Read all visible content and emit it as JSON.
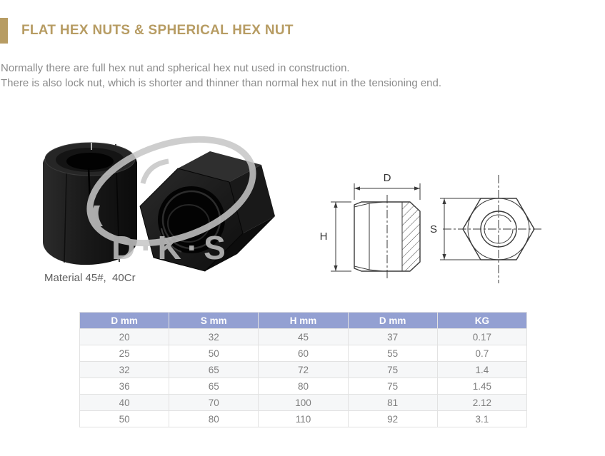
{
  "header": {
    "title": "FLAT HEX NUTS & SPHERICAL HEX NUT"
  },
  "description": {
    "line1": "Normally there are full hex nut and spherical hex nut used in construction.",
    "line2": "There is also lock nut, which is shorter and thinner than normal hex nut in the tensioning end."
  },
  "photo": {
    "watermark": "D·K·S",
    "caption": "Material 45#,  40Cr"
  },
  "drawing": {
    "diameter_label": "D",
    "height_label": "H",
    "width_across_flats_label": "S"
  },
  "table": {
    "headers": [
      "D mm",
      "S mm",
      "H mm",
      "D mm",
      "KG"
    ],
    "rows": [
      [
        "20",
        "32",
        "45",
        "37",
        "0.17"
      ],
      [
        "25",
        "50",
        "60",
        "55",
        "0.7"
      ],
      [
        "32",
        "65",
        "72",
        "75",
        "1.4"
      ],
      [
        "36",
        "65",
        "80",
        "75",
        "1.45"
      ],
      [
        "40",
        "70",
        "100",
        "81",
        "2.12"
      ],
      [
        "50",
        "80",
        "110",
        "92",
        "3.1"
      ]
    ]
  },
  "colors": {
    "accent_gold": "#b79c63",
    "table_header_bg": "#93a0d2",
    "table_header_text": "#ffffff",
    "table_row_alt_bg": "#f6f7f8",
    "table_border": "#e2e2e2",
    "body_text": "#8b8b8b",
    "caption_text": "#5f5f5f",
    "drawing_line": "#3a3a3a",
    "watermark_gray": "#c6c6c6"
  }
}
